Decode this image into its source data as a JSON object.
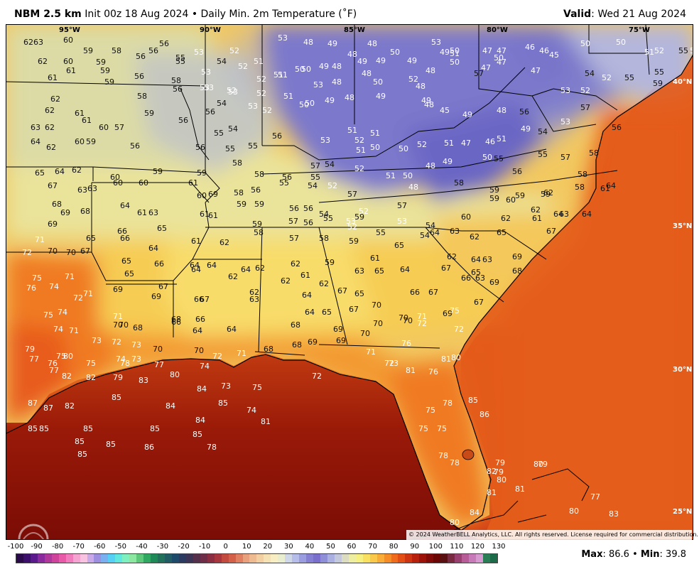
{
  "header": {
    "product": "NBM 2.5 km",
    "init": "Init 00z 18 Aug 2024",
    "bullet": "•",
    "field": "Daily Min. 2m Temperature (˚F)",
    "valid_label": "Valid",
    "valid_time": ": Wed 21 Aug 2024"
  },
  "lon_labels": [
    {
      "text": "95°W"
    },
    {
      "text": "90°W"
    },
    {
      "text": "85°W"
    },
    {
      "text": "80°W"
    },
    {
      "text": "75°W"
    }
  ],
  "lat_labels": [
    {
      "text": "40°N"
    },
    {
      "text": "35°N"
    },
    {
      "text": "30°N"
    },
    {
      "text": "25°N"
    }
  ],
  "copyright": "© 2024 WeatherBELL Analytics, LLC. All rights reserved. License required for commercial distribution.",
  "colorbar": {
    "ticks": [
      "-100",
      "-90",
      "-80",
      "-70",
      "-60",
      "-50",
      "-40",
      "-30",
      "-20",
      "-10",
      "0",
      "10",
      "20",
      "30",
      "40",
      "50",
      "60",
      "70",
      "80",
      "90",
      "100",
      "110",
      "120",
      "130"
    ],
    "colors": [
      "#2a0a4a",
      "#3b0f6b",
      "#5a1a8c",
      "#8a2a9c",
      "#b0389a",
      "#d0439a",
      "#e85aa8",
      "#f07cbd",
      "#f5a3d0",
      "#f8c3e0",
      "#c9a9e8",
      "#9e8ee0",
      "#7ab0f0",
      "#56d0f5",
      "#60e8e0",
      "#7ef0c0",
      "#8ce8a0",
      "#5ec87a",
      "#2fa860",
      "#1e8a58",
      "#20705a",
      "#1f5c64",
      "#1c4a6a",
      "#2a3a60",
      "#3c3456",
      "#55304d",
      "#6e2e47",
      "#8b2e42",
      "#a8363e",
      "#c24a3e",
      "#d5604a",
      "#e07f62",
      "#e9a07c",
      "#eebb90",
      "#f2d0a2",
      "#f5e2b4",
      "#f7eec4",
      "#e9eed0",
      "#cfd8e8",
      "#b6bde8",
      "#9a9ee0",
      "#8580d4",
      "#7a6fcc",
      "#8e8fd6",
      "#aab0e0",
      "#c3c8dc",
      "#dcdcc0",
      "#eeeea0",
      "#f6f080",
      "#f9e060",
      "#fac84a",
      "#f9ac38",
      "#f68c28",
      "#f06c1c",
      "#e24e14",
      "#cf3410",
      "#b8200c",
      "#9c1208",
      "#820a06",
      "#6c0604",
      "#5a1010",
      "#7a2a40",
      "#9a4070",
      "#b85c98",
      "#c87ab8",
      "#d69ad0",
      "#2a7e56",
      "#1b6a48"
    ],
    "max_label": "Max",
    "max_value": ": 86.6",
    "sep": " • ",
    "min_label": "Min",
    "min_value": ": 39.8"
  },
  "station_values": [
    {
      "v": "62"
    },
    {
      "v": "63"
    },
    {
      "v": "60"
    },
    {
      "v": "59"
    },
    {
      "v": "58"
    },
    {
      "v": "56"
    },
    {
      "v": "56"
    },
    {
      "v": "55"
    },
    {
      "v": "53"
    },
    {
      "v": "53"
    },
    {
      "v": "52"
    },
    {
      "v": "51"
    },
    {
      "v": "48"
    },
    {
      "v": "49"
    },
    {
      "v": "48"
    },
    {
      "v": "48"
    },
    {
      "v": "50"
    },
    {
      "v": "53"
    },
    {
      "v": "49"
    },
    {
      "v": "51"
    },
    {
      "v": "50"
    },
    {
      "v": "47"
    },
    {
      "v": "50"
    },
    {
      "v": "47"
    },
    {
      "v": "46"
    },
    {
      "v": "46"
    },
    {
      "v": "45"
    },
    {
      "v": "50"
    },
    {
      "v": "50"
    },
    {
      "v": "51"
    },
    {
      "v": "52"
    },
    {
      "v": "55"
    },
    {
      "v": "53"
    },
    {
      "v": "62"
    },
    {
      "v": "60"
    },
    {
      "v": "61"
    },
    {
      "v": "59"
    },
    {
      "v": "59"
    },
    {
      "v": "56"
    },
    {
      "v": "55"
    },
    {
      "v": "54"
    },
    {
      "v": "52"
    },
    {
      "v": "53"
    },
    {
      "v": "51"
    },
    {
      "v": "50"
    },
    {
      "v": "49"
    },
    {
      "v": "48"
    },
    {
      "v": "49"
    },
    {
      "v": "49"
    },
    {
      "v": "49"
    },
    {
      "v": "48"
    },
    {
      "v": "50"
    },
    {
      "v": "47"
    },
    {
      "v": "47"
    },
    {
      "v": "47"
    },
    {
      "v": "54"
    },
    {
      "v": "52"
    },
    {
      "v": "55"
    },
    {
      "v": "61"
    },
    {
      "v": "59"
    },
    {
      "v": "56"
    },
    {
      "v": "58"
    },
    {
      "v": "53"
    },
    {
      "v": "53"
    },
    {
      "v": "52"
    },
    {
      "v": "51"
    },
    {
      "v": "50"
    },
    {
      "v": "53"
    },
    {
      "v": "48"
    },
    {
      "v": "48"
    },
    {
      "v": "50"
    },
    {
      "v": "52"
    },
    {
      "v": "57"
    },
    {
      "v": "55"
    },
    {
      "v": "59"
    },
    {
      "v": "62"
    },
    {
      "v": "58"
    },
    {
      "v": "56"
    },
    {
      "v": "53"
    },
    {
      "v": "52"
    },
    {
      "v": "52"
    },
    {
      "v": "51"
    },
    {
      "v": "50"
    },
    {
      "v": "49"
    },
    {
      "v": "48"
    },
    {
      "v": "49"
    },
    {
      "v": "48"
    },
    {
      "v": "53"
    },
    {
      "v": "52"
    },
    {
      "v": "62"
    },
    {
      "v": "59"
    },
    {
      "v": "56"
    },
    {
      "v": "54"
    },
    {
      "v": "53"
    },
    {
      "v": "52"
    },
    {
      "v": "50"
    },
    {
      "v": "48"
    },
    {
      "v": "45"
    },
    {
      "v": "48"
    },
    {
      "v": "56"
    },
    {
      "v": "63"
    },
    {
      "v": "62"
    },
    {
      "v": "61"
    },
    {
      "v": "61"
    },
    {
      "v": "60"
    },
    {
      "v": "57"
    },
    {
      "v": "56"
    },
    {
      "v": "55"
    },
    {
      "v": "54"
    },
    {
      "v": "51"
    },
    {
      "v": "52"
    },
    {
      "v": "51"
    },
    {
      "v": "49"
    },
    {
      "v": "49"
    },
    {
      "v": "57"
    },
    {
      "v": "56"
    },
    {
      "v": "64"
    },
    {
      "v": "62"
    },
    {
      "v": "60"
    },
    {
      "v": "59"
    },
    {
      "v": "56"
    },
    {
      "v": "56"
    },
    {
      "v": "55"
    },
    {
      "v": "55"
    },
    {
      "v": "56"
    },
    {
      "v": "53"
    },
    {
      "v": "51"
    },
    {
      "v": "50"
    },
    {
      "v": "50"
    },
    {
      "v": "52"
    },
    {
      "v": "51"
    },
    {
      "v": "47"
    },
    {
      "v": "46"
    },
    {
      "v": "51"
    },
    {
      "v": "49"
    },
    {
      "v": "54"
    },
    {
      "v": "53"
    },
    {
      "v": "58"
    },
    {
      "v": "65"
    },
    {
      "v": "64"
    },
    {
      "v": "62"
    },
    {
      "v": "60"
    },
    {
      "v": "59"
    },
    {
      "v": "59"
    },
    {
      "v": "58"
    },
    {
      "v": "58"
    },
    {
      "v": "56"
    },
    {
      "v": "55"
    },
    {
      "v": "57"
    },
    {
      "v": "54"
    },
    {
      "v": "52"
    },
    {
      "v": "51"
    },
    {
      "v": "50"
    },
    {
      "v": "48"
    },
    {
      "v": "49"
    },
    {
      "v": "50"
    },
    {
      "v": "55"
    },
    {
      "v": "56"
    },
    {
      "v": "55"
    },
    {
      "v": "57"
    },
    {
      "v": "58"
    },
    {
      "v": "67"
    },
    {
      "v": "63"
    },
    {
      "v": "63"
    },
    {
      "v": "60"
    },
    {
      "v": "60"
    },
    {
      "v": "61"
    },
    {
      "v": "60"
    },
    {
      "v": "69"
    },
    {
      "v": "58"
    },
    {
      "v": "56"
    },
    {
      "v": "55"
    },
    {
      "v": "54"
    },
    {
      "v": "52"
    },
    {
      "v": "57"
    },
    {
      "v": "52"
    },
    {
      "v": "48"
    },
    {
      "v": "58"
    },
    {
      "v": "59"
    },
    {
      "v": "59"
    },
    {
      "v": "59"
    },
    {
      "v": "58"
    },
    {
      "v": "61"
    },
    {
      "v": "64"
    },
    {
      "v": "68"
    },
    {
      "v": "69"
    },
    {
      "v": "68"
    },
    {
      "v": "64"
    },
    {
      "v": "61"
    },
    {
      "v": "63"
    },
    {
      "v": "61"
    },
    {
      "v": "59"
    },
    {
      "v": "59"
    },
    {
      "v": "56"
    },
    {
      "v": "56"
    },
    {
      "v": "54"
    },
    {
      "v": "53"
    },
    {
      "v": "57"
    },
    {
      "v": "59"
    },
    {
      "v": "59"
    },
    {
      "v": "60"
    },
    {
      "v": "62"
    },
    {
      "v": "62"
    },
    {
      "v": "69"
    },
    {
      "v": "66"
    },
    {
      "v": "65"
    },
    {
      "v": "61"
    },
    {
      "v": "59"
    },
    {
      "v": "57"
    },
    {
      "v": "56"
    },
    {
      "v": "55"
    },
    {
      "v": "52"
    },
    {
      "v": "53"
    },
    {
      "v": "54"
    },
    {
      "v": "60"
    },
    {
      "v": "62"
    },
    {
      "v": "61"
    },
    {
      "v": "64"
    },
    {
      "v": "63"
    },
    {
      "v": "64"
    },
    {
      "v": "71"
    },
    {
      "v": "65"
    },
    {
      "v": "66"
    },
    {
      "v": "64"
    },
    {
      "v": "61"
    },
    {
      "v": "62"
    },
    {
      "v": "58"
    },
    {
      "v": "57"
    },
    {
      "v": "58"
    },
    {
      "v": "59"
    },
    {
      "v": "55"
    },
    {
      "v": "64"
    },
    {
      "v": "63"
    },
    {
      "v": "62"
    },
    {
      "v": "65"
    },
    {
      "v": "67"
    },
    {
      "v": "72"
    },
    {
      "v": "70"
    },
    {
      "v": "70"
    },
    {
      "v": "67"
    },
    {
      "v": "65"
    },
    {
      "v": "66"
    },
    {
      "v": "64"
    },
    {
      "v": "64"
    },
    {
      "v": "62"
    },
    {
      "v": "62"
    },
    {
      "v": "59"
    },
    {
      "v": "61"
    },
    {
      "v": "65"
    },
    {
      "v": "54"
    },
    {
      "v": "62"
    },
    {
      "v": "64"
    },
    {
      "v": "63"
    },
    {
      "v": "69"
    },
    {
      "v": "75"
    },
    {
      "v": "71"
    },
    {
      "v": "65"
    },
    {
      "v": "64"
    },
    {
      "v": "64"
    },
    {
      "v": "62"
    },
    {
      "v": "62"
    },
    {
      "v": "61"
    },
    {
      "v": "62"
    },
    {
      "v": "63"
    },
    {
      "v": "65"
    },
    {
      "v": "64"
    },
    {
      "v": "67"
    },
    {
      "v": "66"
    },
    {
      "v": "65"
    },
    {
      "v": "63"
    },
    {
      "v": "68"
    },
    {
      "v": "76"
    },
    {
      "v": "74"
    },
    {
      "v": "72"
    },
    {
      "v": "71"
    },
    {
      "v": "69"
    },
    {
      "v": "69"
    },
    {
      "v": "67"
    },
    {
      "v": "66"
    },
    {
      "v": "67"
    },
    {
      "v": "63"
    },
    {
      "v": "62"
    },
    {
      "v": "64"
    },
    {
      "v": "67"
    },
    {
      "v": "65"
    },
    {
      "v": "66"
    },
    {
      "v": "67"
    },
    {
      "v": "67"
    },
    {
      "v": "69"
    },
    {
      "v": "75"
    },
    {
      "v": "74"
    },
    {
      "v": "71"
    },
    {
      "v": "70"
    },
    {
      "v": "68"
    },
    {
      "v": "66"
    },
    {
      "v": "64"
    },
    {
      "v": "64"
    },
    {
      "v": "65"
    },
    {
      "v": "67"
    },
    {
      "v": "70"
    },
    {
      "v": "70"
    },
    {
      "v": "71"
    },
    {
      "v": "69"
    },
    {
      "v": "75"
    },
    {
      "v": "74"
    },
    {
      "v": "71"
    },
    {
      "v": "70"
    },
    {
      "v": "68"
    },
    {
      "v": "66"
    },
    {
      "v": "64"
    },
    {
      "v": "68"
    },
    {
      "v": "69"
    },
    {
      "v": "70"
    },
    {
      "v": "70"
    },
    {
      "v": "72"
    },
    {
      "v": "72"
    },
    {
      "v": "73"
    },
    {
      "v": "72"
    },
    {
      "v": "73"
    },
    {
      "v": "70"
    },
    {
      "v": "70"
    },
    {
      "v": "72"
    },
    {
      "v": "71"
    },
    {
      "v": "68"
    },
    {
      "v": "68"
    },
    {
      "v": "69"
    },
    {
      "v": "69"
    },
    {
      "v": "70"
    },
    {
      "v": "71"
    },
    {
      "v": "72"
    },
    {
      "v": "76"
    },
    {
      "v": "80"
    },
    {
      "v": "79"
    },
    {
      "v": "77"
    },
    {
      "v": "76"
    },
    {
      "v": "80"
    },
    {
      "v": "77"
    },
    {
      "v": "75"
    },
    {
      "v": "74"
    },
    {
      "v": "73"
    },
    {
      "v": "77"
    },
    {
      "v": "75"
    },
    {
      "v": "78"
    },
    {
      "v": "74"
    },
    {
      "v": "72"
    },
    {
      "v": "73"
    },
    {
      "v": "81"
    },
    {
      "v": "82"
    },
    {
      "v": "82"
    },
    {
      "v": "79"
    },
    {
      "v": "83"
    },
    {
      "v": "80"
    },
    {
      "v": "84"
    },
    {
      "v": "73"
    },
    {
      "v": "75"
    },
    {
      "v": "76"
    },
    {
      "v": "81"
    },
    {
      "v": "87"
    },
    {
      "v": "87"
    },
    {
      "v": "82"
    },
    {
      "v": "85"
    },
    {
      "v": "84"
    },
    {
      "v": "85"
    },
    {
      "v": "74"
    },
    {
      "v": "75"
    },
    {
      "v": "78"
    },
    {
      "v": "85"
    },
    {
      "v": "85"
    },
    {
      "v": "85"
    },
    {
      "v": "85"
    },
    {
      "v": "85"
    },
    {
      "v": "85"
    },
    {
      "v": "84"
    },
    {
      "v": "81"
    },
    {
      "v": "75"
    },
    {
      "v": "75"
    },
    {
      "v": "86"
    },
    {
      "v": "85"
    },
    {
      "v": "85"
    },
    {
      "v": "85"
    },
    {
      "v": "86"
    },
    {
      "v": "78"
    },
    {
      "v": "78"
    },
    {
      "v": "79"
    },
    {
      "v": "78"
    },
    {
      "v": "80"
    },
    {
      "v": "80"
    },
    {
      "v": "79"
    },
    {
      "v": "79"
    },
    {
      "v": "82"
    },
    {
      "v": "81"
    },
    {
      "v": "77"
    },
    {
      "v": "81"
    },
    {
      "v": "80"
    },
    {
      "v": "83"
    },
    {
      "v": "84"
    },
    {
      "v": "80"
    }
  ]
}
